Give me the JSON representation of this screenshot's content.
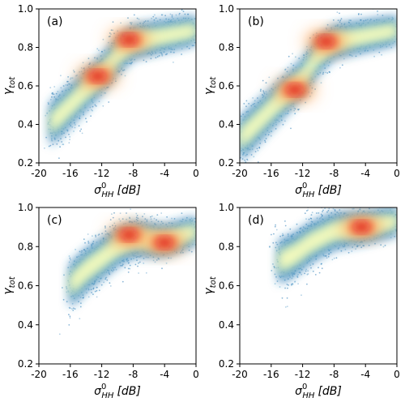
{
  "chart_data": [
    {
      "type": "scatter",
      "panel_label": "(a)",
      "xlabel": {
        "symbol": "σ",
        "sup": "0",
        "sub": "HH",
        "unit": "[dB]"
      },
      "ylabel": {
        "symbol": "γ",
        "sub": "tot"
      },
      "xlim": [
        -20,
        0
      ],
      "ylim": [
        0.2,
        1.0
      ],
      "xticks": [
        -20,
        -16,
        -12,
        -8,
        -4,
        0
      ],
      "yticks": [
        0.2,
        0.4,
        0.6,
        0.8,
        1.0
      ],
      "xtick_labels": [
        "-20",
        "-16",
        "-12",
        "-8",
        "-4",
        "0"
      ],
      "ytick_labels": [
        "0.2",
        "0.4",
        "0.6",
        "0.8",
        "1.0"
      ],
      "grid": false,
      "colormap": [
        "#2c7bb6",
        "#74add1",
        "#c7e9b4",
        "#ffffbf",
        "#fdae61",
        "#f46d43",
        "#d7191c"
      ],
      "density_ridge": [
        [
          -18.5,
          0.4
        ],
        [
          -16,
          0.5
        ],
        [
          -14,
          0.58
        ],
        [
          -12,
          0.66
        ],
        [
          -10,
          0.76
        ],
        [
          -8,
          0.83
        ],
        [
          -4,
          0.86
        ],
        [
          0,
          0.89
        ]
      ],
      "peaks": [
        {
          "x": -12.5,
          "y": 0.65
        },
        {
          "x": -8.5,
          "y": 0.84
        }
      ]
    },
    {
      "type": "scatter",
      "panel_label": "(b)",
      "xlabel": {
        "symbol": "σ",
        "sup": "0",
        "sub": "HH",
        "unit": "[dB]"
      },
      "ylabel": {
        "symbol": "γ",
        "sub": "tot"
      },
      "xlim": [
        -20,
        0
      ],
      "ylim": [
        0.2,
        1.0
      ],
      "xticks": [
        -20,
        -16,
        -12,
        -8,
        -4,
        0
      ],
      "yticks": [
        0.2,
        0.4,
        0.6,
        0.8,
        1.0
      ],
      "xtick_labels": [
        "-20",
        "-16",
        "-12",
        "-8",
        "-4",
        "0"
      ],
      "ytick_labels": [
        "0.2",
        "0.4",
        "0.6",
        "0.8",
        "1.0"
      ],
      "grid": false,
      "colormap": [
        "#2c7bb6",
        "#74add1",
        "#c7e9b4",
        "#ffffbf",
        "#fdae61",
        "#f46d43",
        "#d7191c"
      ],
      "density_ridge": [
        [
          -20,
          0.32
        ],
        [
          -18,
          0.4
        ],
        [
          -16,
          0.48
        ],
        [
          -14,
          0.56
        ],
        [
          -12,
          0.64
        ],
        [
          -10,
          0.76
        ],
        [
          -8,
          0.83
        ],
        [
          -4,
          0.86
        ],
        [
          0,
          0.89
        ]
      ],
      "peaks": [
        {
          "x": -13,
          "y": 0.58
        },
        {
          "x": -9,
          "y": 0.83
        }
      ]
    },
    {
      "type": "scatter",
      "panel_label": "(c)",
      "xlabel": {
        "symbol": "σ",
        "sup": "0",
        "sub": "HH",
        "unit": "[dB]"
      },
      "ylabel": {
        "symbol": "γ",
        "sub": "tot"
      },
      "xlim": [
        -20,
        0
      ],
      "ylim": [
        0.2,
        1.0
      ],
      "xticks": [
        -20,
        -16,
        -12,
        -8,
        -4,
        0
      ],
      "yticks": [
        0.2,
        0.4,
        0.6,
        0.8,
        1.0
      ],
      "xtick_labels": [
        "-20",
        "-16",
        "-12",
        "-8",
        "-4",
        "0"
      ],
      "ytick_labels": [
        "0.2",
        "0.4",
        "0.6",
        "0.8",
        "1.0"
      ],
      "grid": false,
      "colormap": [
        "#2c7bb6",
        "#74add1",
        "#c7e9b4",
        "#ffffbf",
        "#fdae61",
        "#f46d43",
        "#d7191c"
      ],
      "density_ridge": [
        [
          -16,
          0.6
        ],
        [
          -14,
          0.68
        ],
        [
          -12,
          0.74
        ],
        [
          -10,
          0.8
        ],
        [
          -8,
          0.84
        ],
        [
          -4,
          0.83
        ],
        [
          0,
          0.88
        ]
      ],
      "peaks": [
        {
          "x": -8.5,
          "y": 0.86
        },
        {
          "x": -4,
          "y": 0.82
        }
      ]
    },
    {
      "type": "scatter",
      "panel_label": "(d)",
      "xlabel": {
        "symbol": "σ",
        "sup": "0",
        "sub": "HH",
        "unit": "[dB]"
      },
      "ylabel": {
        "symbol": "γ",
        "sub": "tot"
      },
      "xlim": [
        -20,
        0
      ],
      "ylim": [
        0.2,
        1.0
      ],
      "xticks": [
        -20,
        -16,
        -12,
        -8,
        -4,
        0
      ],
      "yticks": [
        0.2,
        0.4,
        0.6,
        0.8,
        1.0
      ],
      "xtick_labels": [
        "-20",
        "-16",
        "-12",
        "-8",
        "-4",
        "0"
      ],
      "ytick_labels": [
        "0.2",
        "0.4",
        "0.6",
        "0.8",
        "1.0"
      ],
      "grid": false,
      "colormap": [
        "#2c7bb6",
        "#74add1",
        "#c7e9b4",
        "#ffffbf",
        "#fdae61",
        "#f46d43",
        "#d7191c"
      ],
      "density_ridge": [
        [
          -15,
          0.72
        ],
        [
          -13,
          0.76
        ],
        [
          -11,
          0.82
        ],
        [
          -8,
          0.88
        ],
        [
          -4,
          0.9
        ],
        [
          0,
          0.93
        ]
      ],
      "peaks": [
        {
          "x": -4.5,
          "y": 0.9
        }
      ]
    }
  ]
}
